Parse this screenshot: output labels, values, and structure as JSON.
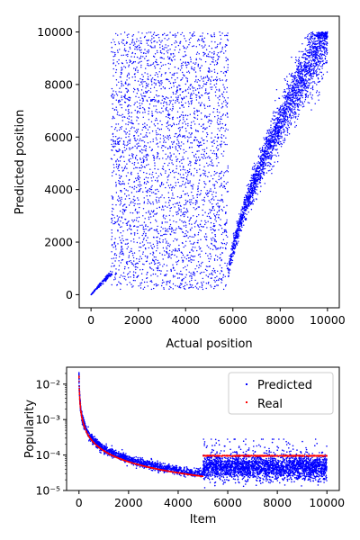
{
  "chart_data": [
    {
      "type": "scatter",
      "title": "",
      "xlabel": "Actual position",
      "ylabel": "Predicted position",
      "xlim": [
        -500,
        10500
      ],
      "ylim": [
        -500,
        10600
      ],
      "xticks": [
        0,
        2000,
        4000,
        6000,
        8000,
        10000
      ],
      "yticks": [
        0,
        2000,
        4000,
        6000,
        8000,
        10000
      ],
      "xtick_labels": [
        "0",
        "2000",
        "4000",
        "6000",
        "8000",
        "10000"
      ],
      "ytick_labels": [
        "0",
        "2000",
        "4000",
        "6000",
        "8000",
        "10000"
      ],
      "grid": false,
      "series": [
        {
          "color": "#0000ff",
          "marker": "dot",
          "regions": [
            {
              "shape": "tight-diagonal",
              "x_range": [
                0,
                900
              ],
              "y_range": [
                0,
                900
              ],
              "n": 160
            },
            {
              "shape": "uniform-block",
              "x_range": [
                850,
                5800
              ],
              "y_range": [
                200,
                10000
              ],
              "n": 3000
            },
            {
              "shape": "curve-band",
              "x_range": [
                5800,
                10000
              ],
              "y_range": [
                700,
                10000
              ],
              "n": 2600
            }
          ]
        }
      ]
    },
    {
      "type": "scatter",
      "title": "",
      "xlabel": "Item",
      "ylabel": "Popularity",
      "xlim": [
        -500,
        10500
      ],
      "ylim": [
        1e-05,
        0.03
      ],
      "yscale": "log",
      "xticks": [
        0,
        2000,
        4000,
        6000,
        8000,
        10000
      ],
      "xtick_labels": [
        "0",
        "2000",
        "4000",
        "6000",
        "8000",
        "10000"
      ],
      "yticks": [
        1e-05,
        0.0001,
        0.001,
        0.01
      ],
      "ytick_labels": [
        "10⁻⁵",
        "10⁻⁴",
        "10⁻³",
        "10⁻²"
      ],
      "grid": false,
      "legend_position": "top-right",
      "series": [
        {
          "name": "Predicted",
          "color": "#0000ff",
          "regions": [
            {
              "shape": "decay",
              "x_range": [
                0,
                5000
              ],
              "y_start": 0.02,
              "y_end": 3e-05
            },
            {
              "shape": "flat-band",
              "x_range": [
                5000,
                10000
              ],
              "y_center": 4e-05,
              "y_range": [
                1.5e-05,
                0.0002
              ]
            }
          ]
        },
        {
          "name": "Real",
          "color": "#ff0000",
          "regions": [
            {
              "shape": "decay",
              "x_range": [
                0,
                5000
              ],
              "y_start": 0.02,
              "y_end": 2.5e-05
            },
            {
              "shape": "flat-line",
              "x_range": [
                5000,
                10000
              ],
              "y": 9.5e-05
            }
          ]
        }
      ]
    }
  ]
}
